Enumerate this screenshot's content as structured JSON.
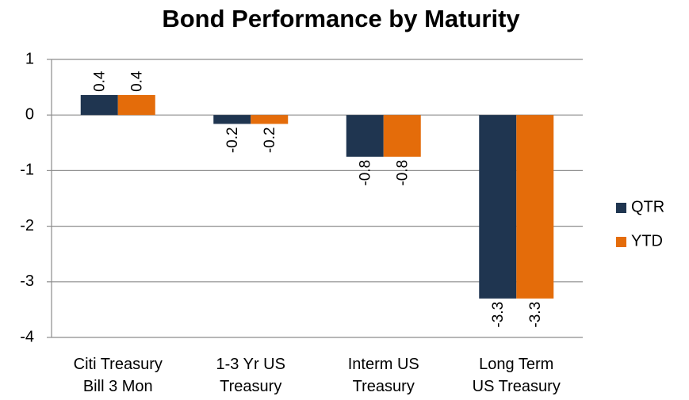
{
  "chart_data": {
    "type": "bar",
    "title": "Bond Performance by Maturity",
    "categories": [
      "Citi Treasury Bill 3 Mon",
      "1-3 Yr US Treasury",
      "Interm US Treasury",
      "Long Term US Treasury"
    ],
    "series": [
      {
        "name": "QTR",
        "color": "#1f3550",
        "values": [
          0.36,
          -0.16,
          -0.75,
          -3.3
        ],
        "value_labels": [
          "0.4",
          "-0.2",
          "-0.8",
          "-3.3"
        ]
      },
      {
        "name": "YTD",
        "color": "#e46c0a",
        "values": [
          0.36,
          -0.16,
          -0.75,
          -3.3
        ],
        "value_labels": [
          "0.4",
          "-0.2",
          "-0.8",
          "-3.3"
        ]
      }
    ],
    "ylim": [
      -4,
      1
    ],
    "yticks": [
      1,
      0,
      -1,
      -2,
      -3,
      -4
    ],
    "grid": true,
    "legend": "right"
  }
}
